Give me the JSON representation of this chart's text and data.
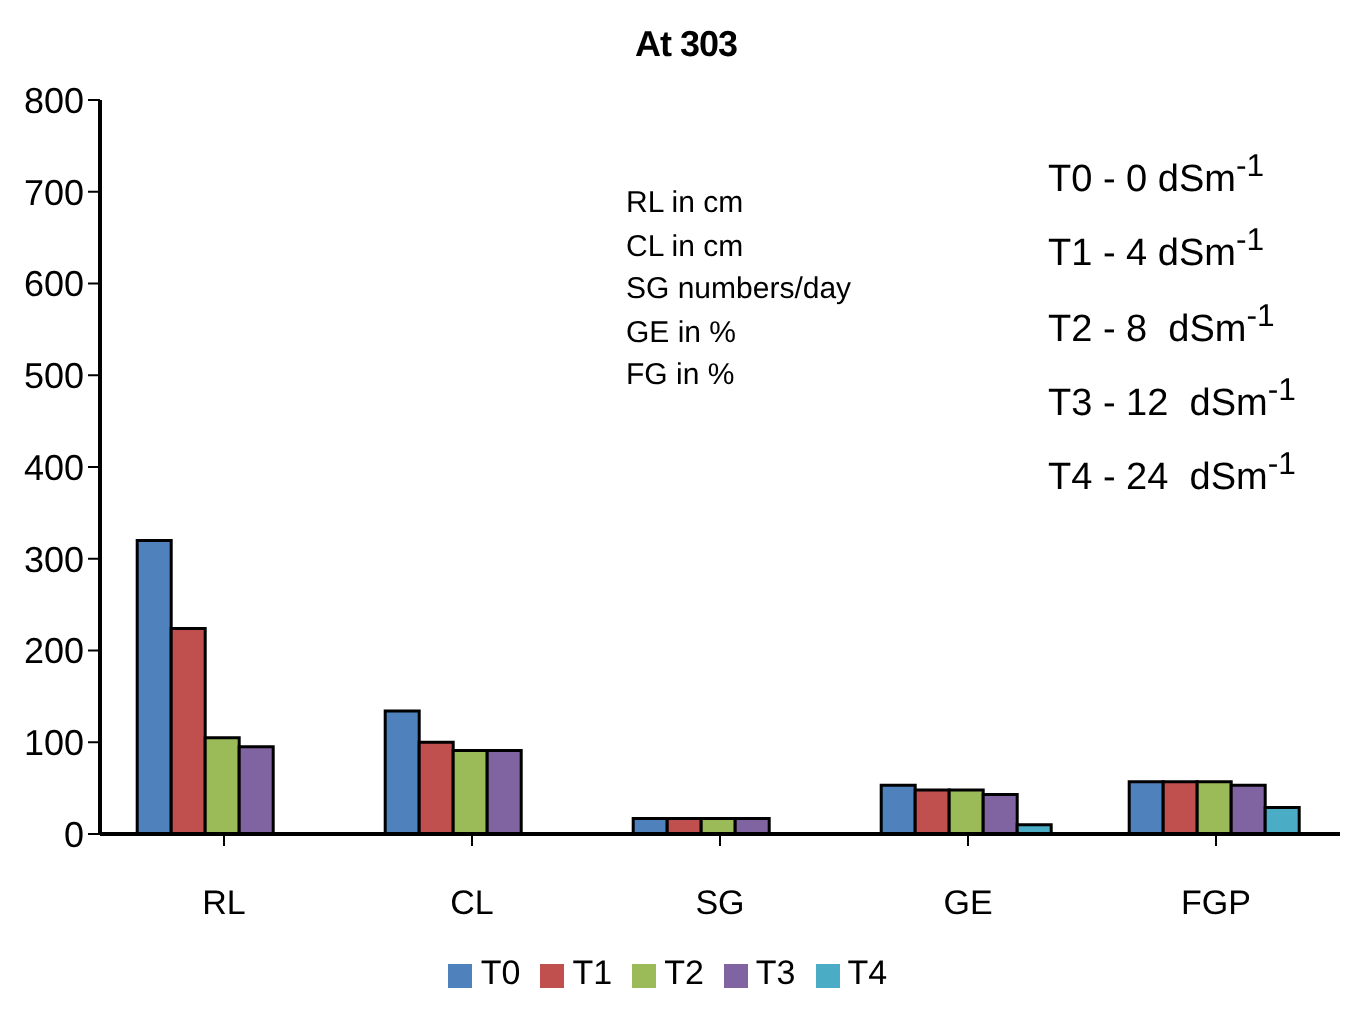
{
  "chart_data": {
    "type": "bar",
    "title": "At 303",
    "categories": [
      "RL",
      "CL",
      "SG",
      "GE",
      "FGP"
    ],
    "series": [
      {
        "name": "T0",
        "color": "#4f81bd",
        "values": [
          320,
          134,
          17,
          53,
          57
        ]
      },
      {
        "name": "T1",
        "color": "#c0504d",
        "values": [
          224,
          100,
          17,
          48,
          57
        ]
      },
      {
        "name": "T2",
        "color": "#9bbb59",
        "values": [
          105,
          91,
          17,
          48,
          57
        ]
      },
      {
        "name": "T3",
        "color": "#8064a2",
        "values": [
          95,
          91,
          17,
          43,
          53
        ]
      },
      {
        "name": "T4",
        "color": "#4bacc6",
        "values": [
          null,
          null,
          null,
          10,
          29
        ]
      }
    ],
    "ylim": [
      0,
      800
    ],
    "yticks": [
      0,
      100,
      200,
      300,
      400,
      500,
      600,
      700,
      800
    ],
    "grid": false,
    "legend": "bottom",
    "annotations": [
      "RL in cm",
      "CL in cm",
      "SG numbers/day",
      "GE in %",
      "FG in %",
      "T0 - 0 dSm$^{-1}$",
      "T1 - 4 dSm$^{-1}$",
      "T2 - 8  dSm$^{-1}$",
      "T3 - 12  dSm$^{-1}$",
      "T4 - 24  dSm$^{-1}$"
    ]
  }
}
